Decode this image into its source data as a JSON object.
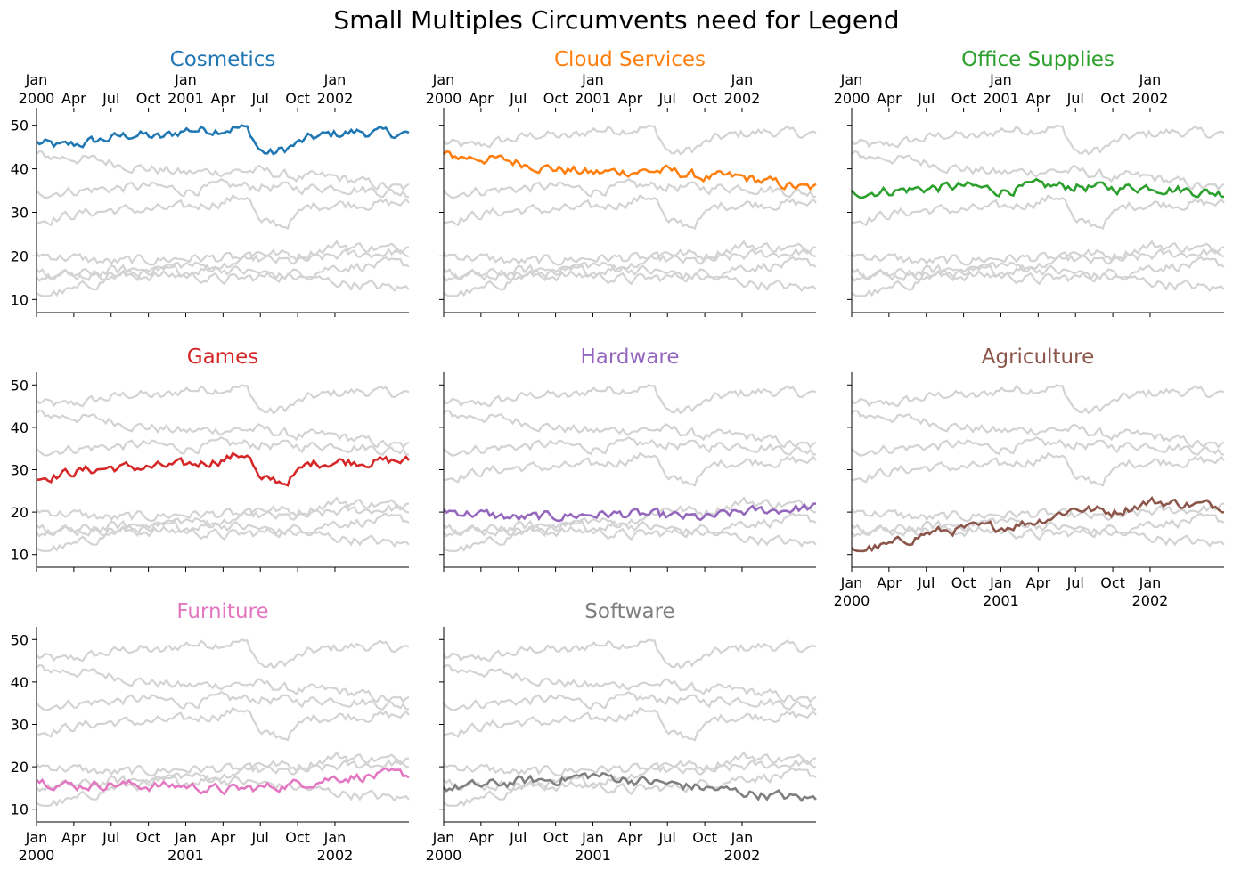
{
  "chart_data": {
    "type": "line",
    "title": "Small Multiples Circumvents need for Legend",
    "x_start": "2000-01",
    "x_end": "2002-06",
    "ylim": [
      7,
      53
    ],
    "yticks": [
      10,
      20,
      30,
      40,
      50
    ],
    "xticks": [
      {
        "top": "Jan",
        "bottom": "2000",
        "month_index": 0
      },
      {
        "top": "Apr",
        "bottom": "",
        "month_index": 3
      },
      {
        "top": "Jul",
        "bottom": "",
        "month_index": 6
      },
      {
        "top": "Oct",
        "bottom": "",
        "month_index": 9
      },
      {
        "top": "Jan",
        "bottom": "2001",
        "month_index": 12
      },
      {
        "top": "Apr",
        "bottom": "",
        "month_index": 15
      },
      {
        "top": "Jul",
        "bottom": "",
        "month_index": 18
      },
      {
        "top": "Oct",
        "bottom": "",
        "month_index": 21
      },
      {
        "top": "Jan",
        "bottom": "2002",
        "month_index": 24
      }
    ],
    "background_color": "#d3d3d3",
    "series": [
      {
        "name": "Cosmetics",
        "color": "#1f77b4",
        "months": [
          "2000-01",
          "2000-03",
          "2000-05",
          "2000-07",
          "2000-09",
          "2000-11",
          "2001-01",
          "2001-03",
          "2001-05",
          "2001-06",
          "2001-07",
          "2001-08",
          "2001-09",
          "2001-11",
          "2002-01",
          "2002-03",
          "2002-06"
        ],
        "values": [
          46,
          45,
          46,
          47,
          48,
          47,
          49,
          49,
          49.5,
          49,
          44,
          43.5,
          44.5,
          47,
          48,
          48.5,
          48
        ]
      },
      {
        "name": "Cloud Services",
        "color": "#ff7f0e",
        "months": [
          "2000-01",
          "2000-04",
          "2000-07",
          "2000-10",
          "2001-01",
          "2001-04",
          "2001-07",
          "2001-10",
          "2002-01",
          "2002-06"
        ],
        "values": [
          43,
          42.5,
          41.5,
          40,
          39,
          39.5,
          39.5,
          38,
          38,
          35.5
        ]
      },
      {
        "name": "Office Supplies",
        "color": "#2ca02c",
        "months": [
          "2000-01",
          "2000-04",
          "2000-07",
          "2000-10",
          "2001-01",
          "2001-04",
          "2001-07",
          "2001-10",
          "2002-01",
          "2002-06"
        ],
        "values": [
          34.5,
          35,
          35.5,
          36,
          35,
          36,
          36,
          35.5,
          36,
          34.5
        ]
      },
      {
        "name": "Games",
        "color": "#d62728",
        "months": [
          "2000-01",
          "2000-04",
          "2000-07",
          "2000-10",
          "2001-01",
          "2001-04",
          "2001-06",
          "2001-07",
          "2001-08",
          "2001-09",
          "2001-11",
          "2002-01",
          "2002-06"
        ],
        "values": [
          28,
          29.5,
          30.5,
          30.5,
          31,
          32.5,
          34,
          27,
          27.5,
          27,
          31.5,
          32,
          32
        ]
      },
      {
        "name": "Hardware",
        "color": "#9467bd",
        "months": [
          "2000-01",
          "2000-04",
          "2000-07",
          "2000-10",
          "2001-01",
          "2001-04",
          "2001-07",
          "2001-10",
          "2002-01",
          "2002-06"
        ],
        "values": [
          20.5,
          19.5,
          18.5,
          19,
          19.5,
          19.5,
          19,
          18.5,
          20,
          21
        ]
      },
      {
        "name": "Agriculture",
        "color": "#8c564b",
        "months": [
          "2000-01",
          "2000-04",
          "2000-07",
          "2000-10",
          "2001-01",
          "2001-04",
          "2001-07",
          "2001-10",
          "2002-01",
          "2002-06"
        ],
        "values": [
          11,
          12,
          15,
          16,
          16.5,
          18,
          21,
          20,
          22.5,
          21.5
        ]
      },
      {
        "name": "Furniture",
        "color": "#e377c2",
        "months": [
          "2000-01",
          "2000-04",
          "2000-07",
          "2000-10",
          "2001-01",
          "2001-04",
          "2001-07",
          "2001-10",
          "2002-01",
          "2002-06"
        ],
        "values": [
          17,
          15.5,
          16,
          15.5,
          15.5,
          14.5,
          15,
          16,
          17.5,
          18
        ]
      },
      {
        "name": "Software",
        "color": "#7f7f7f",
        "months": [
          "2000-01",
          "2000-04",
          "2000-07",
          "2000-10",
          "2001-01",
          "2001-04",
          "2001-07",
          "2001-10",
          "2002-01",
          "2002-06"
        ],
        "values": [
          15,
          15.5,
          16.5,
          17,
          18,
          17,
          16,
          15,
          14,
          12.5
        ]
      }
    ]
  }
}
